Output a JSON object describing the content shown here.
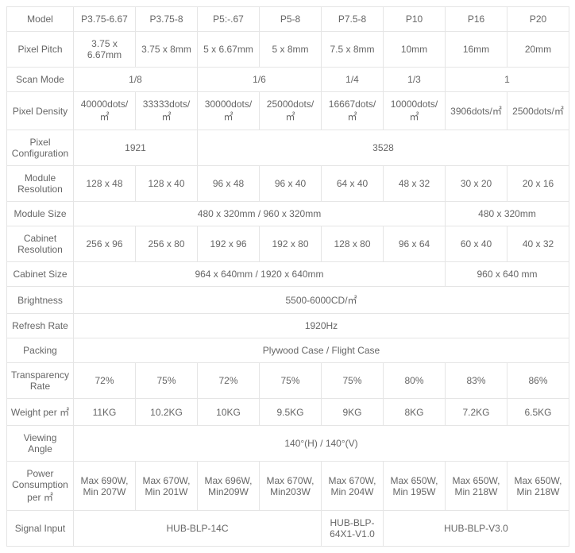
{
  "columns": [
    "P3.75-6.67",
    "P3.75-8",
    "P5:-.67",
    "P5-8",
    "P7.5-8",
    "P10",
    "P16",
    "P20"
  ],
  "rows": {
    "model_label": "Model",
    "pixel_pitch": {
      "label": "Pixel Pitch",
      "vals": [
        "3.75 x 6.67mm",
        "3.75 x 8mm",
        "5 x 6.67mm",
        "5 x 8mm",
        "7.5 x 8mm",
        "10mm",
        "16mm",
        "20mm"
      ]
    },
    "scan_mode": {
      "label": "Scan Mode",
      "g1": "1/8",
      "g2": "1/6",
      "g3": "1/4",
      "g4": "1/3",
      "g5": "1"
    },
    "pixel_density": {
      "label": "Pixel Density",
      "vals": [
        "40000dots/㎡",
        "33333dots/㎡",
        "30000dots/㎡",
        "25000dots/㎡",
        "16667dots/㎡",
        "10000dots/㎡",
        "3906dots/㎡",
        "2500dots/㎡"
      ]
    },
    "pixel_config": {
      "label": "Pixel Configuration",
      "g1": "1921",
      "g2": "3528"
    },
    "module_res": {
      "label": "Module Resolution",
      "vals": [
        "128 x 48",
        "128 x 40",
        "96 x 48",
        "96 x 40",
        "64 x 40",
        "48 x 32",
        "30 x 20",
        "20 x 16"
      ]
    },
    "module_size": {
      "label": "Module Size",
      "g1": "480 x 320mm / 960 x 320mm",
      "g2": "480 x 320mm"
    },
    "cabinet_res": {
      "label": "Cabinet Resolution",
      "vals": [
        "256 x 96",
        "256 x 80",
        "192 x 96",
        "192 x 80",
        "128 x 80",
        "96 x 64",
        "60 x 40",
        "40 x 32"
      ]
    },
    "cabinet_size": {
      "label": "Cabinet Size",
      "g1": "964 x 640mm  / 1920 x 640mm",
      "g2": "960 x 640 mm"
    },
    "brightness": {
      "label": "Brightness",
      "val": "5500-6000CD/㎡"
    },
    "refresh": {
      "label": "Refresh Rate",
      "val": "1920Hz"
    },
    "packing": {
      "label": "Packing",
      "val": "Plywood Case / Flight Case"
    },
    "transparency": {
      "label": "Transparency Rate",
      "vals": [
        "72%",
        "75%",
        "72%",
        "75%",
        "75%",
        "80%",
        "83%",
        "86%"
      ]
    },
    "weight": {
      "label": "Weight per ㎡",
      "vals": [
        "11KG",
        "10.2KG",
        "10KG",
        "9.5KG",
        "9KG",
        "8KG",
        "7.2KG",
        "6.5KG"
      ]
    },
    "viewing": {
      "label": "Viewing Angle",
      "val": "140°(H) / 140°(V)"
    },
    "power": {
      "label": "Power Consumption per ㎡",
      "vals": [
        "Max 690W, Min 207W",
        "Max 670W, Min 201W",
        "Max 696W, Min209W",
        "Max 670W, Min203W",
        "Max 670W, Min 204W",
        "Max 650W, Min 195W",
        "Max 650W, Min 218W",
        "Max 650W, Min 218W"
      ]
    },
    "signal": {
      "label": "Signal Input",
      "g1": "HUB-BLP-14C",
      "g2": "HUB-BLP-64X1-V1.0",
      "g3": "HUB-BLP-V3.0"
    }
  }
}
